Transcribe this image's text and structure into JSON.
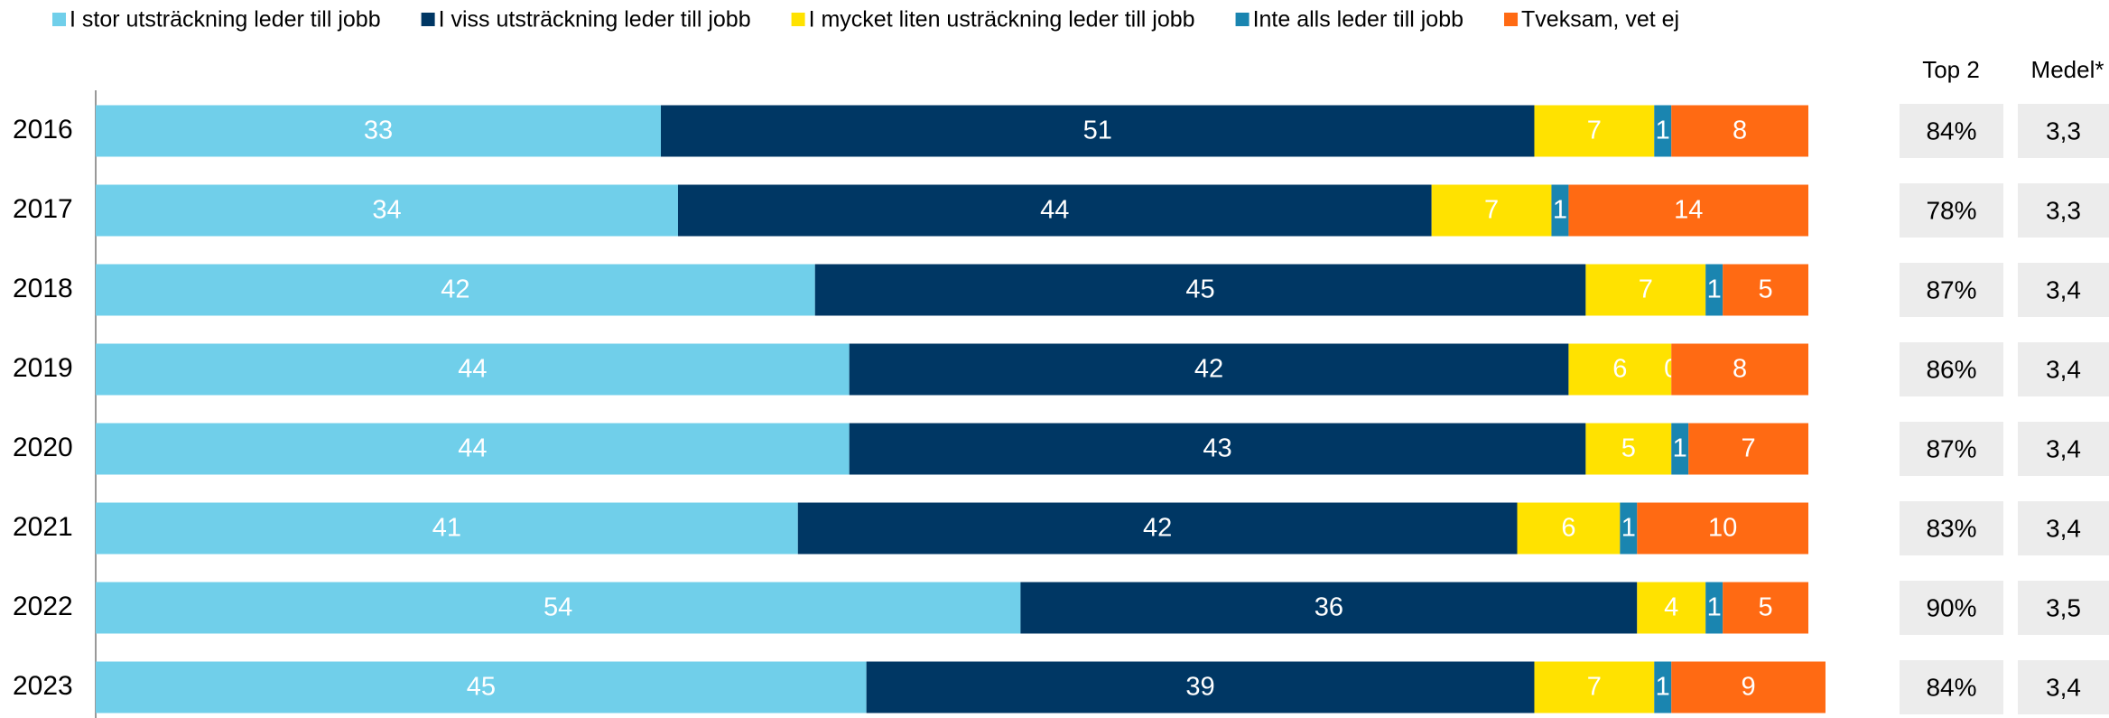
{
  "chart_data": {
    "type": "stacked_barh",
    "categories": [
      "2016",
      "2017",
      "2018",
      "2019",
      "2020",
      "2021",
      "2022",
      "2023"
    ],
    "series": [
      {
        "name": "I stor utsträckning leder till jobb",
        "color": "#70cfea",
        "values": [
          33,
          34,
          42,
          44,
          44,
          41,
          54,
          45
        ]
      },
      {
        "name": "I viss utsträckning leder till jobb",
        "color": "#003764",
        "values": [
          51,
          44,
          45,
          42,
          43,
          42,
          36,
          39
        ]
      },
      {
        "name": "I mycket liten usträckning leder till jobb",
        "color": "#ffe200",
        "values": [
          7,
          7,
          7,
          6,
          5,
          6,
          4,
          7
        ]
      },
      {
        "name": "Inte alls leder till jobb",
        "color": "#1a85b0",
        "values": [
          1,
          1,
          1,
          0,
          1,
          1,
          1,
          1
        ]
      },
      {
        "name": "Tveksam, vet ej",
        "color": "#ff6a13",
        "values": [
          8,
          14,
          5,
          8,
          7,
          10,
          5,
          9
        ]
      }
    ],
    "xlim": [
      0,
      100
    ],
    "legend": "top",
    "top2": {
      "title": "Top 2",
      "values": [
        84,
        78,
        87,
        86,
        87,
        83,
        90,
        84
      ],
      "value_labels": [
        "84%",
        "78%",
        "87%",
        "86%",
        "87%",
        "83%",
        "90%",
        "84%"
      ]
    },
    "medel": {
      "title": "Medel*",
      "values": [
        3.3,
        3.3,
        3.4,
        3.4,
        3.4,
        3.4,
        3.5,
        3.4
      ],
      "value_labels": [
        "3,3",
        "3,3",
        "3,4",
        "3,4",
        "3,4",
        "3,4",
        "3,5",
        "3,4"
      ]
    }
  }
}
